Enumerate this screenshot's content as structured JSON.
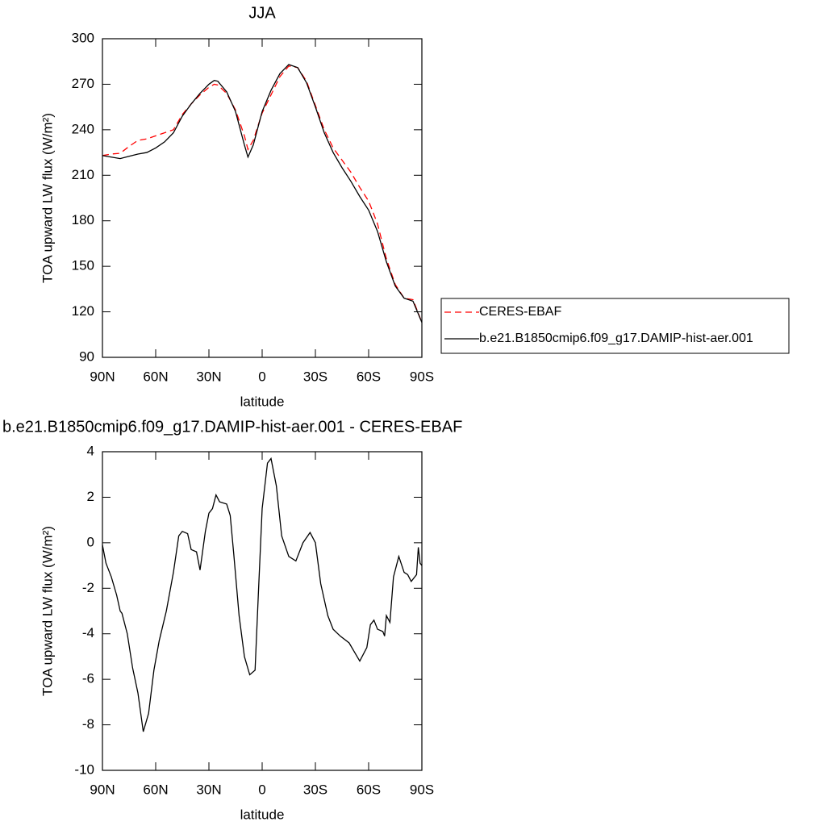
{
  "chart_data": [
    {
      "type": "line",
      "title": "JJA",
      "xlabel": "latitude",
      "ylabel": "TOA upward LW flux (W/m²)",
      "x": [
        90,
        85,
        80,
        75,
        70,
        65,
        60,
        55,
        50,
        45,
        40,
        35,
        30,
        27,
        25,
        20,
        15,
        10,
        8,
        5,
        0,
        -5,
        -10,
        -15,
        -20,
        -25,
        -30,
        -35,
        -40,
        -45,
        -50,
        -55,
        -60,
        -65,
        -70,
        -75,
        -80,
        -85,
        -90
      ],
      "series": [
        {
          "name": "CERES-EBAF",
          "color": "#ff0000",
          "dashed": true,
          "values": [
            223,
            224,
            224.5,
            229,
            233,
            234,
            236,
            238,
            240,
            250,
            257,
            263,
            268,
            270,
            269.5,
            264,
            253,
            236,
            227,
            233,
            251,
            263,
            275,
            282,
            281,
            272,
            256,
            240,
            228,
            220,
            212,
            202,
            193,
            178,
            155,
            138,
            129,
            128,
            113
          ]
        },
        {
          "name": "b.e21.B1850cmip6.f09_g17.DAMIP-hist-aer.001",
          "color": "#000000",
          "dashed": false,
          "values": [
            223,
            222,
            221,
            222.5,
            224,
            225,
            228,
            232,
            238,
            249,
            257,
            264,
            270,
            272.5,
            272,
            265,
            252,
            230,
            222,
            230,
            252,
            266,
            277,
            283,
            281,
            271,
            255,
            238,
            225,
            215,
            206,
            196,
            187,
            173,
            153,
            137,
            129,
            127,
            113
          ]
        }
      ],
      "xlim": [
        90,
        -90
      ],
      "xticks": [
        {
          "value": 90,
          "label": "90N"
        },
        {
          "value": 60,
          "label": "60N"
        },
        {
          "value": 30,
          "label": "30N"
        },
        0,
        {
          "value": -30,
          "label": "30S"
        },
        {
          "value": -60,
          "label": "60S"
        },
        {
          "value": -90,
          "label": "90S"
        }
      ],
      "ylim": [
        90,
        300
      ],
      "yticks": [
        90,
        120,
        150,
        180,
        210,
        240,
        270,
        300
      ],
      "legend": "right"
    },
    {
      "type": "line",
      "title": "b.e21.B1850cmip6.f09_g17.DAMIP-hist-aer.001 - CERES-EBAF",
      "xlabel": "latitude",
      "ylabel": "TOA upward LW flux (W/m²)",
      "x": [
        90,
        88,
        85,
        82,
        80,
        79,
        76,
        73,
        70,
        67,
        64,
        61,
        58,
        54,
        50,
        47,
        45,
        42,
        40,
        37,
        35,
        32,
        30,
        28,
        26,
        24,
        20,
        18,
        16,
        13,
        10,
        7,
        4,
        2,
        0,
        -3,
        -5,
        -8,
        -11,
        -15,
        -19,
        -23,
        -27,
        -30,
        -33,
        -37,
        -40,
        -44,
        -49,
        -52,
        -55,
        -59,
        -61,
        -63,
        -65,
        -68,
        -69,
        -70,
        -72,
        -74,
        -77,
        -80,
        -82,
        -84,
        -87,
        -88,
        -89,
        -90
      ],
      "series": [
        {
          "name": null,
          "color": "#000000",
          "dashed": false,
          "values": [
            -0.1,
            -0.9,
            -1.5,
            -2.3,
            -3,
            -3.1,
            -4,
            -5.5,
            -6.6,
            -8.3,
            -7.5,
            -5.6,
            -4.3,
            -3,
            -1.3,
            0.3,
            0.5,
            0.4,
            -0.3,
            -0.4,
            -1.2,
            0.5,
            1.3,
            1.5,
            2.1,
            1.8,
            1.7,
            1.2,
            -0.5,
            -3.2,
            -5,
            -5.8,
            -5.6,
            -2,
            1.5,
            3.5,
            3.7,
            2.5,
            0.3,
            -0.6,
            -0.8,
            0,
            0.45,
            0,
            -1.8,
            -3.2,
            -3.8,
            -4.1,
            -4.4,
            -4.8,
            -5.2,
            -4.6,
            -3.6,
            -3.4,
            -3.8,
            -3.9,
            -4.1,
            -3.2,
            -3.5,
            -1.5,
            -0.6,
            -1.3,
            -1.4,
            -1.7,
            -1.4,
            -0.2,
            -0.9,
            -1
          ]
        }
      ],
      "xlim": [
        90,
        -90
      ],
      "xticks": [
        {
          "value": 90,
          "label": "90N"
        },
        {
          "value": 60,
          "label": "60N"
        },
        {
          "value": 30,
          "label": "30N"
        },
        0,
        {
          "value": -30,
          "label": "30S"
        },
        {
          "value": -60,
          "label": "60S"
        },
        {
          "value": -90,
          "label": "90S"
        }
      ],
      "ylim": [
        -10,
        4
      ],
      "yticks": [
        -10,
        -8,
        -6,
        -4,
        -2,
        0,
        2,
        4
      ]
    }
  ]
}
